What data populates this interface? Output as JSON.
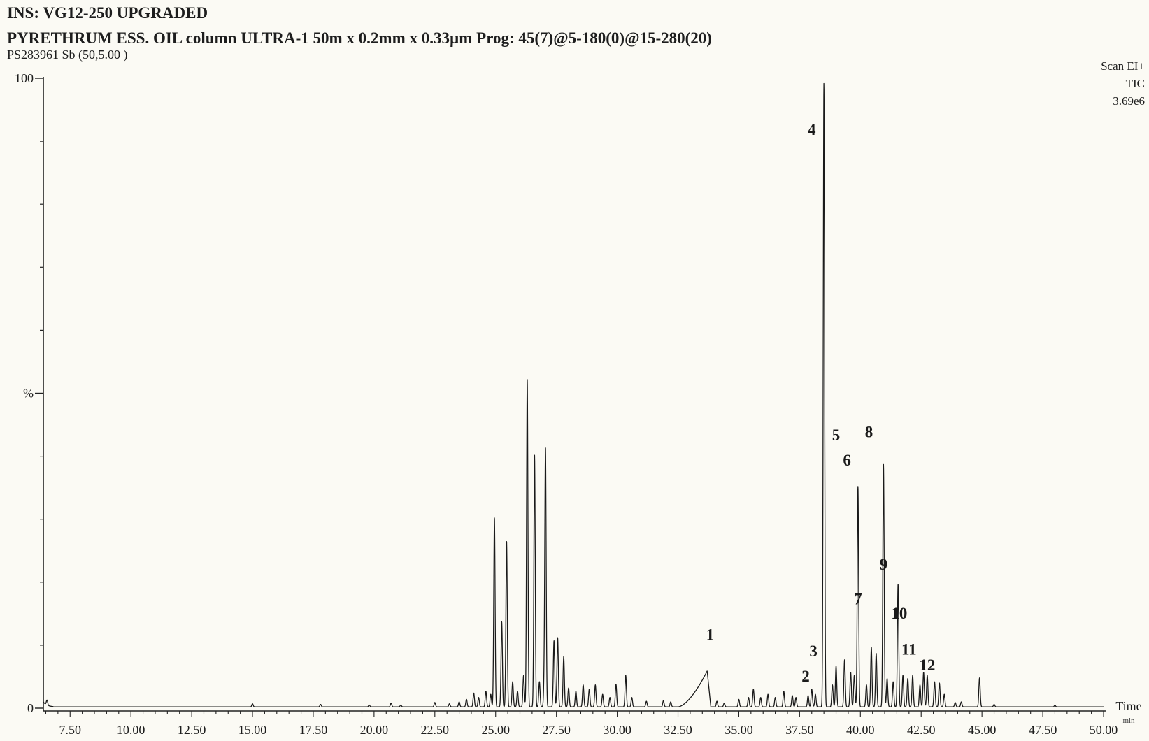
{
  "header": {
    "instrument": "INS: VG12-250 UPGRADED",
    "program": "PYRETHRUM ESS. OIL column ULTRA-1 50m x 0.2mm x 0.33µm  Prog: 45(7)@5-180(0)@15-280(20)",
    "sample": "PS283961 Sb (50,5.00 )",
    "scan_mode": "Scan EI+",
    "trace": "TIC",
    "intensity": "3.69e6"
  },
  "chart_data": {
    "type": "line",
    "title": "",
    "xlabel": "Time",
    "xlabel_unit": "min",
    "ylabel": "%",
    "xlim": [
      6.4,
      50.0
    ],
    "ylim": [
      0,
      100
    ],
    "x_ticks": [
      "7.50",
      "10.00",
      "12.50",
      "15.00",
      "17.50",
      "20.00",
      "22.50",
      "25.00",
      "27.50",
      "30.00",
      "32.50",
      "35.00",
      "37.50",
      "40.00",
      "42.50",
      "45.00",
      "47.50",
      "50.00"
    ],
    "y_ticks": [
      "100",
      "%",
      "0"
    ],
    "baseline_pct": 0.2,
    "series": [
      {
        "peaks": [
          {
            "t": 6.55,
            "h": 0.8
          },
          {
            "t": 15.0,
            "h": 0.5
          },
          {
            "t": 17.8,
            "h": 0.4
          },
          {
            "t": 19.8,
            "h": 0.3
          },
          {
            "t": 20.7,
            "h": 0.6
          },
          {
            "t": 21.1,
            "h": 0.3
          },
          {
            "t": 22.5,
            "h": 0.7
          },
          {
            "t": 23.1,
            "h": 0.5
          },
          {
            "t": 23.5,
            "h": 0.8
          },
          {
            "t": 23.8,
            "h": 1.2
          },
          {
            "t": 24.1,
            "h": 2.2
          },
          {
            "t": 24.3,
            "h": 1.5
          },
          {
            "t": 24.6,
            "h": 2.5
          },
          {
            "t": 24.8,
            "h": 2.0
          },
          {
            "t": 24.95,
            "h": 30.0
          },
          {
            "t": 25.25,
            "h": 13.5
          },
          {
            "t": 25.45,
            "h": 26.3
          },
          {
            "t": 25.7,
            "h": 4.0
          },
          {
            "t": 25.9,
            "h": 2.5
          },
          {
            "t": 26.15,
            "h": 5.0
          },
          {
            "t": 26.3,
            "h": 52.0
          },
          {
            "t": 26.6,
            "h": 40.0
          },
          {
            "t": 26.8,
            "h": 4.0
          },
          {
            "t": 27.0,
            "h": 3.5
          },
          {
            "t": 27.05,
            "h": 40.5
          },
          {
            "t": 27.4,
            "h": 10.5
          },
          {
            "t": 27.55,
            "h": 11.0
          },
          {
            "t": 27.8,
            "h": 8.0
          },
          {
            "t": 28.0,
            "h": 3.0
          },
          {
            "t": 28.3,
            "h": 2.5
          },
          {
            "t": 28.6,
            "h": 3.5
          },
          {
            "t": 28.85,
            "h": 2.8
          },
          {
            "t": 29.1,
            "h": 3.5
          },
          {
            "t": 29.4,
            "h": 2.0
          },
          {
            "t": 29.7,
            "h": 1.5
          },
          {
            "t": 29.95,
            "h": 3.6
          },
          {
            "t": 30.35,
            "h": 5.0
          },
          {
            "t": 30.6,
            "h": 1.5
          },
          {
            "t": 31.2,
            "h": 0.9
          },
          {
            "t": 31.9,
            "h": 1.0
          },
          {
            "t": 32.2,
            "h": 0.8
          },
          {
            "t": 34.1,
            "h": 0.9
          },
          {
            "t": 34.4,
            "h": 0.6
          },
          {
            "t": 35.0,
            "h": 1.2
          },
          {
            "t": 35.4,
            "h": 1.5
          },
          {
            "t": 35.6,
            "h": 2.8
          },
          {
            "t": 35.9,
            "h": 1.5
          },
          {
            "t": 36.2,
            "h": 2.0
          },
          {
            "t": 36.5,
            "h": 1.5
          },
          {
            "t": 36.85,
            "h": 2.5
          },
          {
            "t": 37.2,
            "h": 1.8
          },
          {
            "t": 37.35,
            "h": 1.5
          },
          {
            "t": 37.85,
            "h": 1.8
          },
          {
            "t": 38.0,
            "h": 2.8
          },
          {
            "t": 38.15,
            "h": 2.0
          },
          {
            "t": 38.5,
            "h": 99.0
          },
          {
            "t": 38.85,
            "h": 3.5
          },
          {
            "t": 39.0,
            "h": 6.5
          },
          {
            "t": 39.35,
            "h": 7.5
          },
          {
            "t": 39.6,
            "h": 5.5
          },
          {
            "t": 39.75,
            "h": 5.0
          },
          {
            "t": 39.9,
            "h": 35.0
          },
          {
            "t": 40.25,
            "h": 3.5
          },
          {
            "t": 40.45,
            "h": 9.5
          },
          {
            "t": 40.65,
            "h": 8.5
          },
          {
            "t": 40.95,
            "h": 38.5
          },
          {
            "t": 41.1,
            "h": 4.5
          },
          {
            "t": 41.35,
            "h": 4.0
          },
          {
            "t": 41.55,
            "h": 19.5
          },
          {
            "t": 41.75,
            "h": 5.0
          },
          {
            "t": 41.95,
            "h": 4.5
          },
          {
            "t": 42.15,
            "h": 5.0
          },
          {
            "t": 42.45,
            "h": 3.5
          },
          {
            "t": 42.6,
            "h": 5.5
          },
          {
            "t": 42.75,
            "h": 5.0
          },
          {
            "t": 43.05,
            "h": 4.0
          },
          {
            "t": 43.25,
            "h": 3.8
          },
          {
            "t": 43.45,
            "h": 2.0
          },
          {
            "t": 43.9,
            "h": 0.7
          },
          {
            "t": 44.15,
            "h": 0.8
          },
          {
            "t": 44.9,
            "h": 4.6
          },
          {
            "t": 45.5,
            "h": 0.4
          },
          {
            "t": 48.0,
            "h": 0.25
          }
        ],
        "broad_hump": {
          "start": 32.5,
          "apex": 33.7,
          "apex_h": 5.7,
          "end": 33.85
        }
      }
    ],
    "peak_labels": [
      {
        "label": "1",
        "t": 33.82,
        "y": 10.8
      },
      {
        "label": "2",
        "t": 37.75,
        "y": 4.2
      },
      {
        "label": "3",
        "t": 38.07,
        "y": 8.2
      },
      {
        "label": "4",
        "t": 38.0,
        "y": 91.0
      },
      {
        "label": "5",
        "t": 39.0,
        "y": 42.5
      },
      {
        "label": "6",
        "t": 39.45,
        "y": 38.5
      },
      {
        "label": "7",
        "t": 39.9,
        "y": 16.5
      },
      {
        "label": "8",
        "t": 40.35,
        "y": 43.0
      },
      {
        "label": "9",
        "t": 40.95,
        "y": 22.0
      },
      {
        "label": "10",
        "t": 41.6,
        "y": 14.2
      },
      {
        "label": "11",
        "t": 42.0,
        "y": 8.5
      },
      {
        "label": "12",
        "t": 42.75,
        "y": 6.0
      }
    ]
  }
}
